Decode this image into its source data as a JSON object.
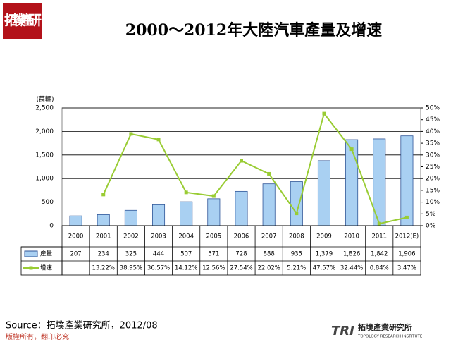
{
  "logo_text": "拓墣產研",
  "chart_data": {
    "type": "bar_line_table",
    "title": "2000～2012年大陸汽車產量及增速",
    "y_label": "(萬輛)",
    "categories": [
      "2000",
      "2001",
      "2002",
      "2003",
      "2004",
      "2005",
      "2006",
      "2007",
      "2008",
      "2009",
      "2010",
      "2011",
      "2012(E)"
    ],
    "series": [
      {
        "name": "產量",
        "color": "#a9d0f2",
        "values": [
          207,
          234,
          325,
          444,
          507,
          571,
          728,
          888,
          935,
          1379,
          1826,
          1842,
          1906
        ],
        "value_labels": [
          "207",
          "234",
          "325",
          "444",
          "507",
          "571",
          "728",
          "888",
          "935",
          "1,379",
          "1,826",
          "1,842",
          "1,906"
        ]
      },
      {
        "name": "增速",
        "color": "#99cc33",
        "axis": "y2",
        "values": [
          null,
          13.22,
          38.95,
          36.57,
          14.12,
          12.56,
          27.54,
          22.02,
          5.21,
          47.57,
          32.44,
          0.84,
          3.47
        ],
        "value_labels": [
          null,
          "13.22%",
          "38.95%",
          "36.57%",
          "14.12%",
          "12.56%",
          "27.54%",
          "22.02%",
          "5.21%",
          "47.57%",
          "32.44%",
          "0.84%",
          "3.47%"
        ]
      }
    ],
    "ylim": [
      0,
      2500
    ],
    "yticks": [
      0,
      500,
      {
        "value": 1000,
        "label": "1,000"
      },
      {
        "value": 1500,
        "label": "1,500"
      },
      {
        "value": 2000,
        "label": "2,000"
      },
      {
        "value": 2500,
        "label": "2,500"
      }
    ],
    "y2lim": [
      0,
      50
    ],
    "y2ticks": [
      {
        "value": 0,
        "label": "0%"
      },
      {
        "value": 5,
        "label": "5%"
      },
      {
        "value": 10,
        "label": "10%"
      },
      {
        "value": 15,
        "label": "15%"
      },
      {
        "value": 20,
        "label": "20%"
      },
      {
        "value": 25,
        "label": "25%"
      },
      {
        "value": 30,
        "label": "30%"
      },
      {
        "value": 35,
        "label": "35%"
      },
      {
        "value": 40,
        "label": "40%"
      },
      {
        "value": 45,
        "label": "45%"
      },
      {
        "value": 50,
        "label": "50%"
      }
    ]
  },
  "source": "Source：拓墣產業研究所，2012/08",
  "footer": "版權所有，翻印必究",
  "brand": {
    "name": "拓墣產業研究所",
    "english": "TOPOLOGY RESEARCH INSTITUTE",
    "mark": "TRI"
  }
}
